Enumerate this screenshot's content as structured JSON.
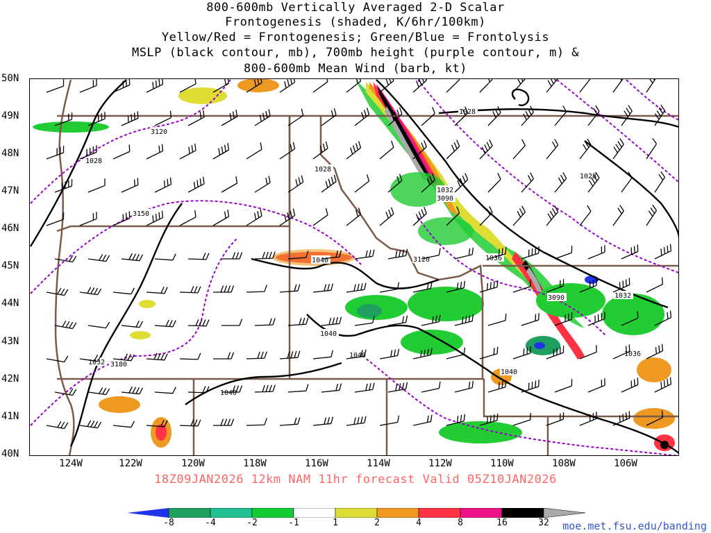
{
  "title": {
    "line1": "800-600mb Vertically Averaged 2-D Scalar",
    "line2": "Frontogenesis (shaded, K/6hr/100km)",
    "line3": "Yellow/Red = Frontogenesis;  Green/Blue = Frontolysis",
    "line4": "MSLP (black contour, mb), 700mb height (purple contour, m) &",
    "line5": "800-600mb Mean Wind (barb, kt)"
  },
  "valid_line": "18Z09JAN2026 12km NAM 11hr forecast Valid 05Z10JAN2026",
  "url": "moe.met.fsu.edu/banding",
  "map": {
    "lat_labels": [
      "50N",
      "49N",
      "48N",
      "47N",
      "46N",
      "45N",
      "44N",
      "43N",
      "42N",
      "41N",
      "40N"
    ],
    "lon_labels": [
      "124W",
      "122W",
      "120W",
      "118W",
      "116W",
      "114W",
      "112W",
      "110W",
      "108W",
      "106W"
    ],
    "mslp_labels": [
      "1028",
      "1028",
      "1028",
      "1028",
      "1032",
      "1032",
      "1032",
      "1036",
      "1036",
      "1040",
      "1040",
      "1040",
      "1040",
      "1040"
    ],
    "height_labels": [
      "3120",
      "3150",
      "3180",
      "3090",
      "3120",
      "3090"
    ],
    "colors": {
      "mslp": "#000000",
      "height": "#9900cc",
      "borders": "#7a5a4a"
    }
  },
  "colorbar": {
    "labels": [
      "-8",
      "-4",
      "-2",
      "-1",
      "1",
      "2",
      "4",
      "8",
      "16",
      "32"
    ],
    "colors": [
      "#2233ee",
      "#1fa060",
      "#22c090",
      "#11cc33",
      "#ffffff",
      "#dddd33",
      "#ee9922",
      "#ff3344",
      "#ee1188",
      "#000000",
      "#aaaaaa"
    ]
  }
}
